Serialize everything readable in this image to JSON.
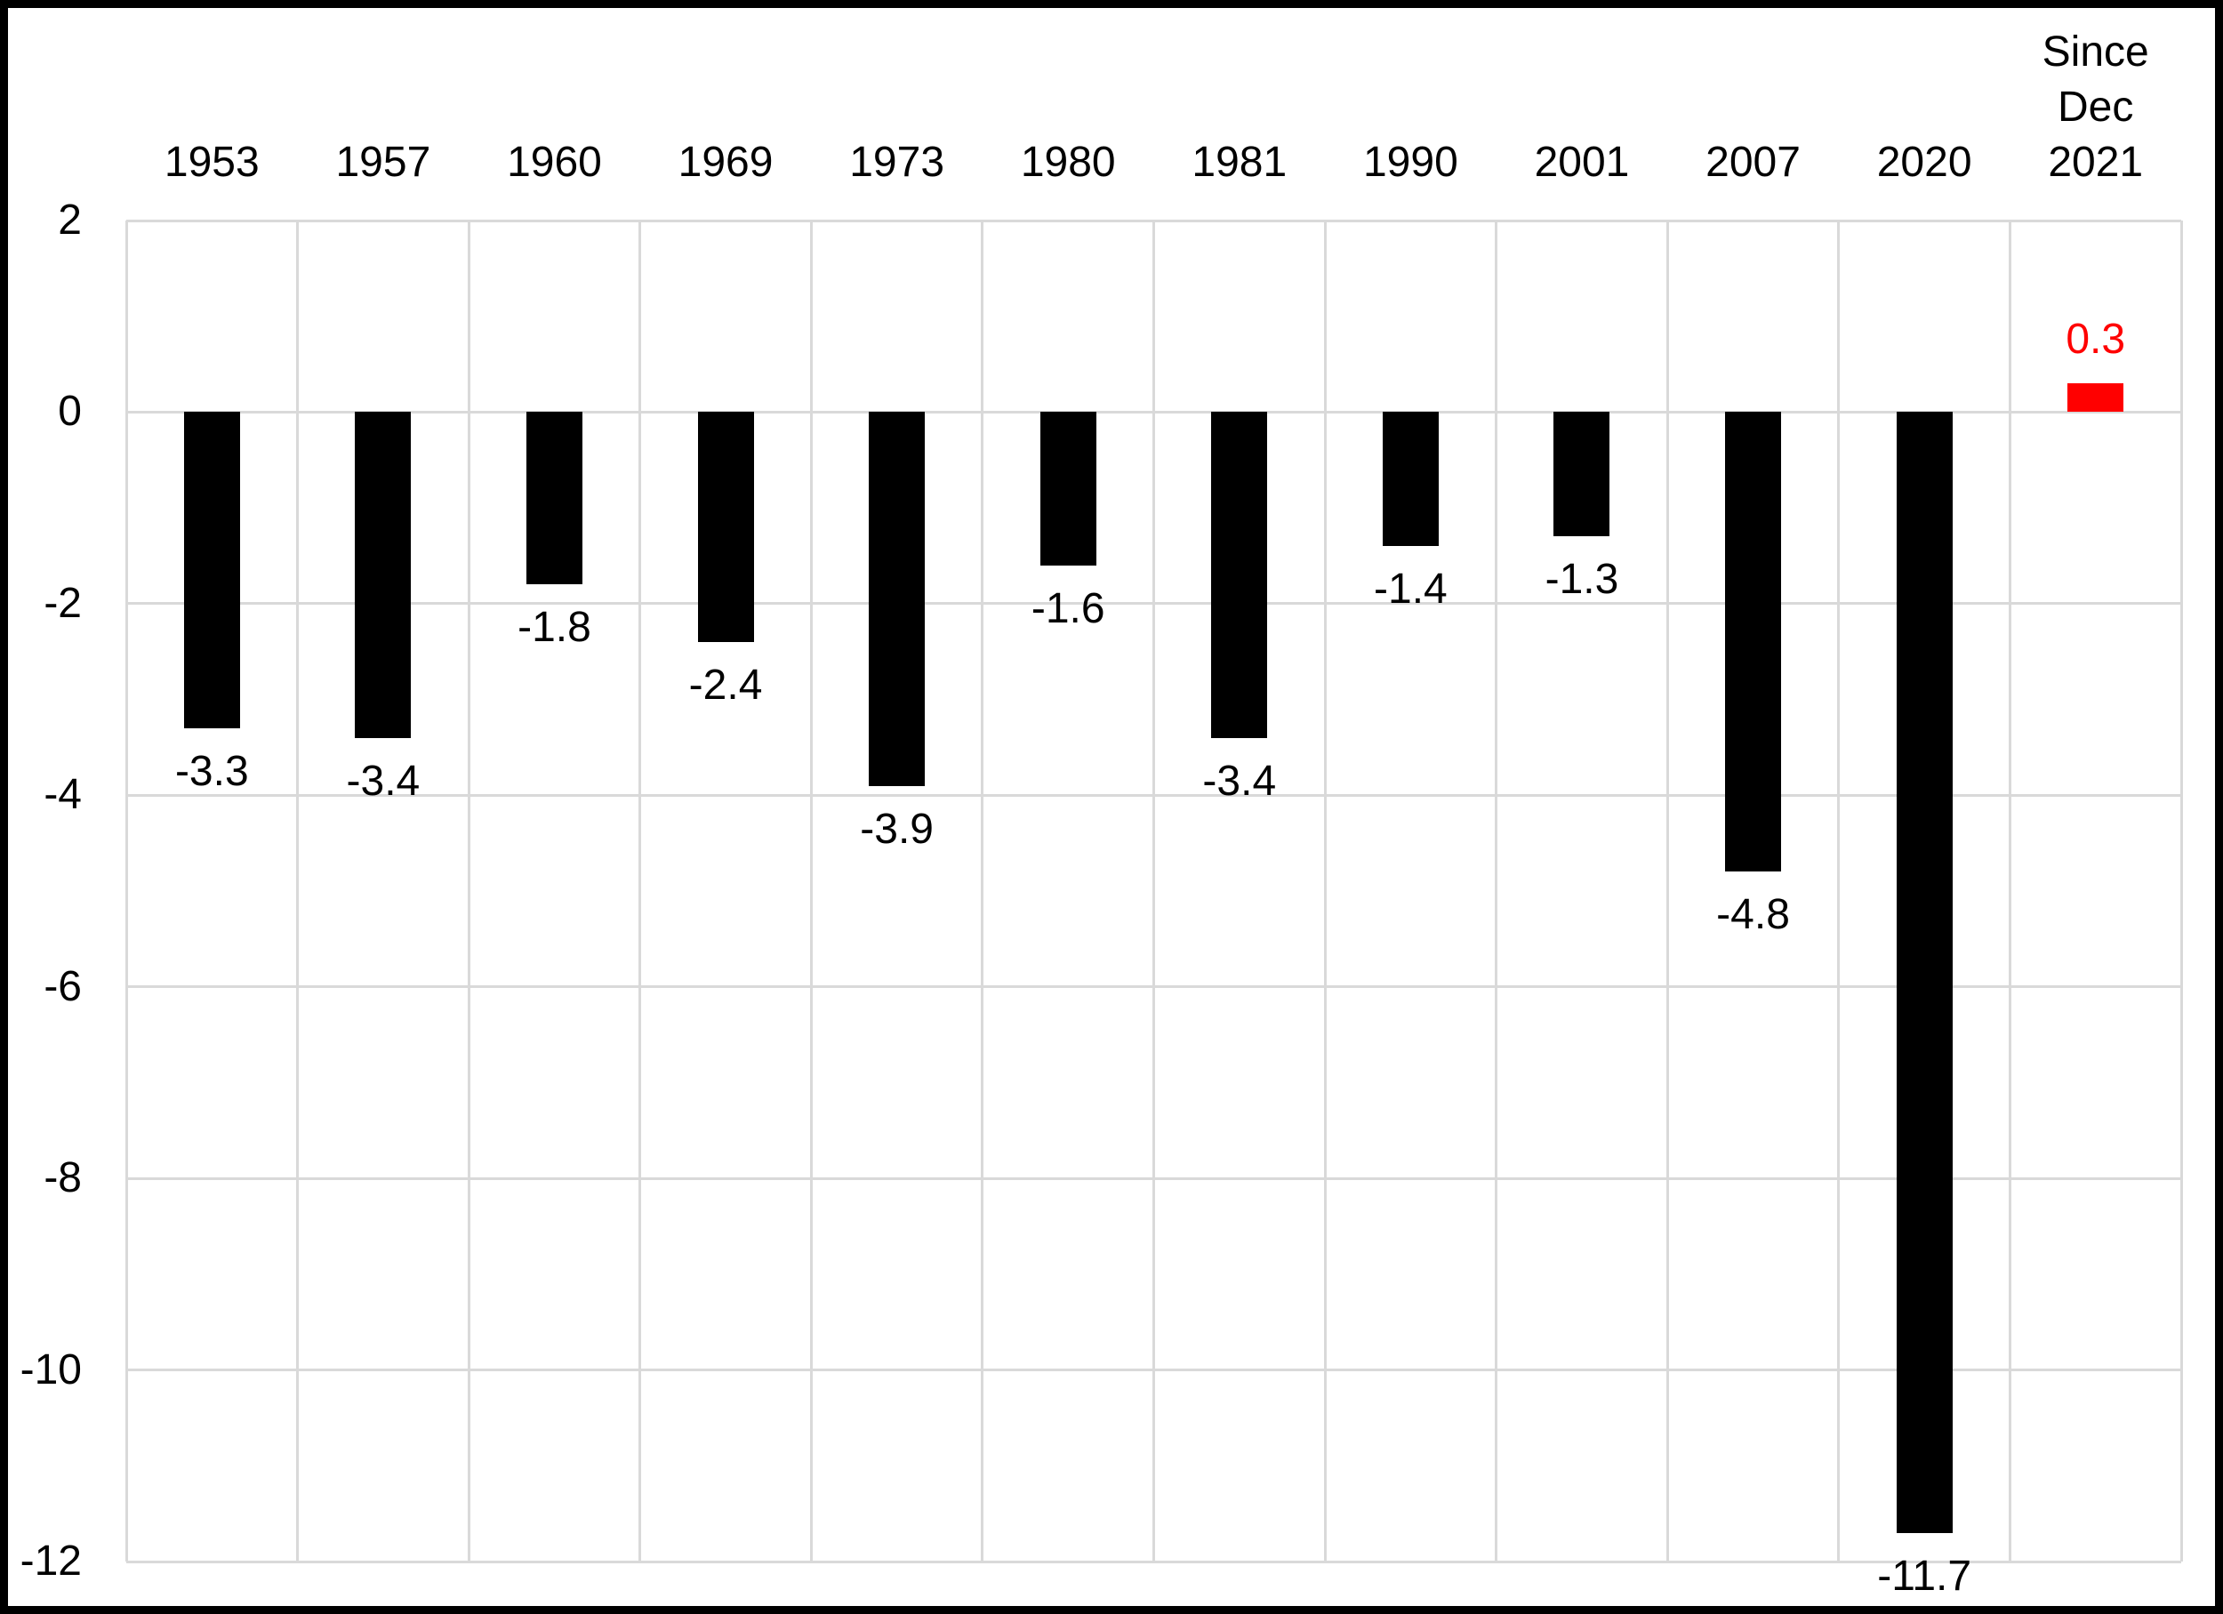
{
  "chart_data": {
    "type": "bar",
    "title": "",
    "categories": [
      "1953",
      "1957",
      "1960",
      "1969",
      "1973",
      "1980",
      "1981",
      "1990",
      "2001",
      "2007",
      "2020",
      "Since\nDec\n2021"
    ],
    "values": [
      -3.3,
      -3.4,
      -1.8,
      -2.4,
      -3.9,
      -1.6,
      -3.4,
      -1.4,
      -1.3,
      -4.8,
      -11.7,
      0.3
    ],
    "data_labels": [
      "-3.3",
      "-3.4",
      "-1.8",
      "-2.4",
      "-3.9",
      "-1.6",
      "-3.4",
      "-1.4",
      "-1.3",
      "-4.8",
      "-11.7",
      "0.3"
    ],
    "bar_colors": [
      "#000000",
      "#000000",
      "#000000",
      "#000000",
      "#000000",
      "#000000",
      "#000000",
      "#000000",
      "#000000",
      "#000000",
      "#000000",
      "#FF0000"
    ],
    "label_colors": [
      "#000000",
      "#000000",
      "#000000",
      "#000000",
      "#000000",
      "#000000",
      "#000000",
      "#000000",
      "#000000",
      "#000000",
      "#000000",
      "#FF0000"
    ],
    "highlight_index": 11,
    "yticks": [
      2,
      0,
      -2,
      -4,
      -6,
      -8,
      -10,
      -12
    ],
    "ytick_labels": [
      "2",
      "0",
      "-2",
      "-4",
      "-6",
      "-8",
      "-10",
      "-12"
    ],
    "ylim": [
      -12,
      2
    ],
    "grid": true,
    "legend_position": "none",
    "colors": {
      "bar_default": "#000000",
      "bar_highlight": "#FF0000",
      "gridline": "#D9D9D9",
      "frame": "#000000",
      "background": "#FFFFFF"
    }
  }
}
